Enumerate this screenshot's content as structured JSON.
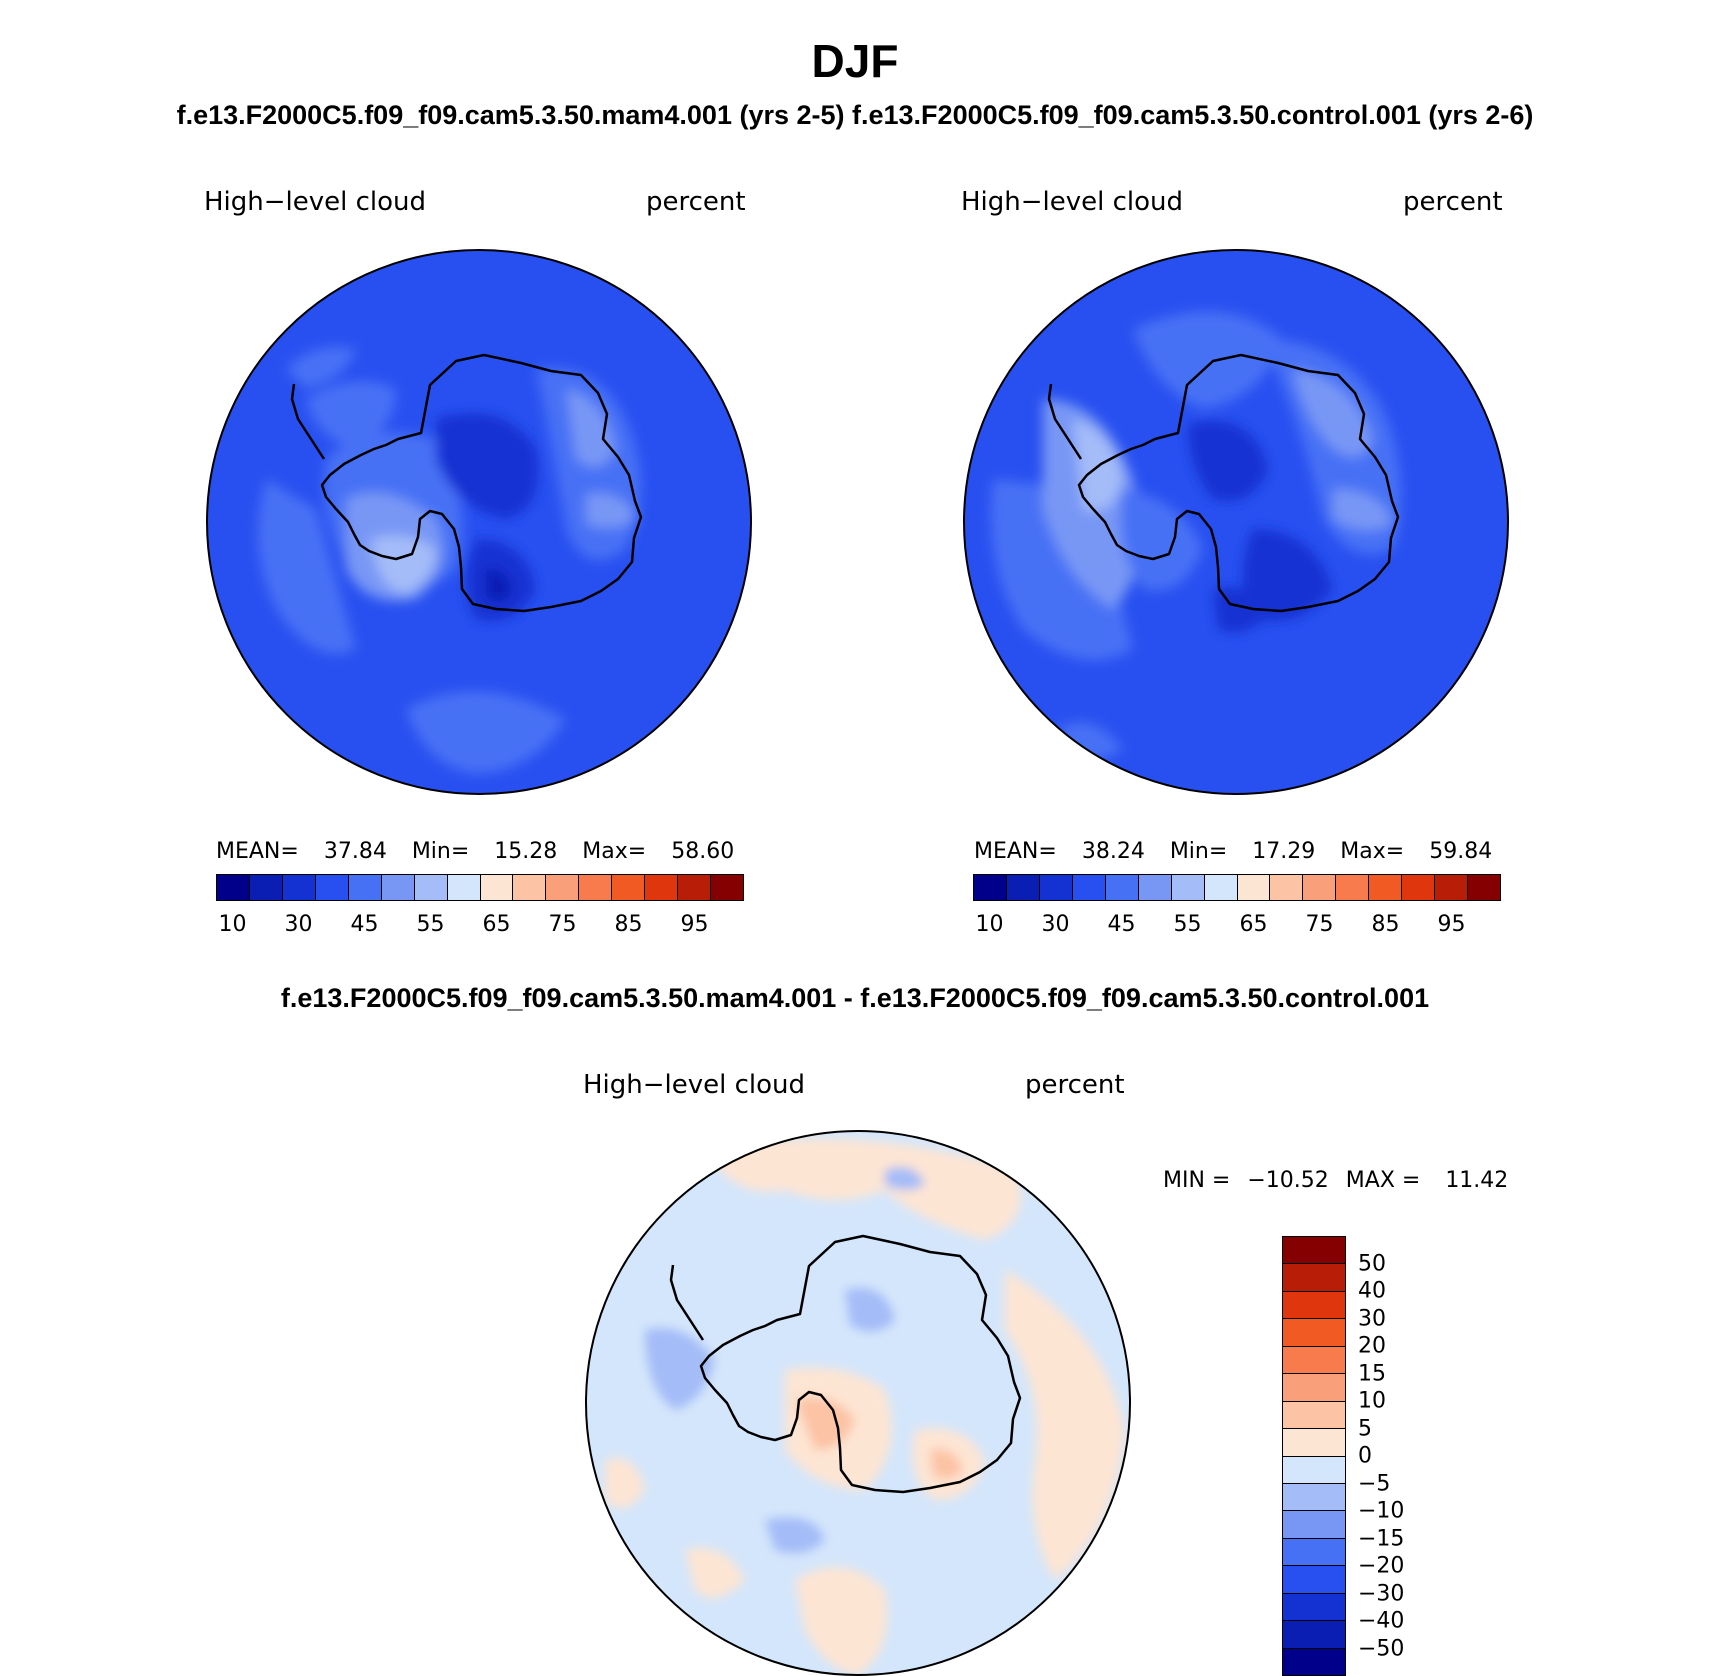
{
  "season": "DJF",
  "pair_title": "f.e13.F2000C5.f09_f09.cam5.3.50.mam4.001 (yrs 2-5) f.e13.F2000C5.f09_f09.cam5.3.50.control.001 (yrs 2-6)",
  "diff_title": "f.e13.F2000C5.f09_f09.cam5.3.50.mam4.001 - f.e13.F2000C5.f09_f09.cam5.3.50.control.001",
  "chart_data": [
    {
      "type": "heatmap",
      "projection": "south-polar-stereographic",
      "variable": "High−level cloud",
      "units": "percent",
      "stats": {
        "mean_label": "MEAN=",
        "mean": "37.84",
        "min_label": "Min=",
        "min": "15.28",
        "max_label": "Max=",
        "max": "58.60"
      },
      "colorbar": {
        "orientation": "horizontal",
        "tick_labels": [
          "10",
          "30",
          "45",
          "55",
          "65",
          "75",
          "85",
          "95"
        ],
        "colors": [
          "#00008b",
          "#0a1eb4",
          "#1432d2",
          "#2850f0",
          "#4671f5",
          "#7897f5",
          "#a4bcf8",
          "#d4e6fb",
          "#fde5d3",
          "#fcc3a4",
          "#f9a07a",
          "#f77b4c",
          "#f15a23",
          "#e0360d",
          "#b81d07",
          "#850000"
        ]
      }
    },
    {
      "type": "heatmap",
      "projection": "south-polar-stereographic",
      "variable": "High−level cloud",
      "units": "percent",
      "stats": {
        "mean_label": "MEAN=",
        "mean": "38.24",
        "min_label": "Min=",
        "min": "17.29",
        "max_label": "Max=",
        "max": "59.84"
      },
      "colorbar": {
        "orientation": "horizontal",
        "tick_labels": [
          "10",
          "30",
          "45",
          "55",
          "65",
          "75",
          "85",
          "95"
        ],
        "colors": [
          "#00008b",
          "#0a1eb4",
          "#1432d2",
          "#2850f0",
          "#4671f5",
          "#7897f5",
          "#a4bcf8",
          "#d4e6fb",
          "#fde5d3",
          "#fcc3a4",
          "#f9a07a",
          "#f77b4c",
          "#f15a23",
          "#e0360d",
          "#b81d07",
          "#850000"
        ]
      }
    },
    {
      "type": "heatmap",
      "projection": "south-polar-stereographic",
      "variable": "High−level cloud",
      "units": "percent",
      "stats": {
        "min_label": "MIN =",
        "min": "−10.52",
        "max_label": "MAX =",
        "max": "11.42"
      },
      "colorbar": {
        "orientation": "vertical",
        "tick_labels": [
          "50",
          "40",
          "30",
          "20",
          "15",
          "10",
          "5",
          "0",
          "−5",
          "−10",
          "−15",
          "−20",
          "−30",
          "−40",
          "−50"
        ],
        "colors": [
          "#850000",
          "#b81d07",
          "#e0360d",
          "#f15a23",
          "#f77b4c",
          "#f9a07a",
          "#fcc3a4",
          "#fde5d3",
          "#d4e6fb",
          "#a4bcf8",
          "#7897f5",
          "#4671f5",
          "#2850f0",
          "#1432d2",
          "#0a1eb4",
          "#00008b"
        ]
      }
    }
  ]
}
